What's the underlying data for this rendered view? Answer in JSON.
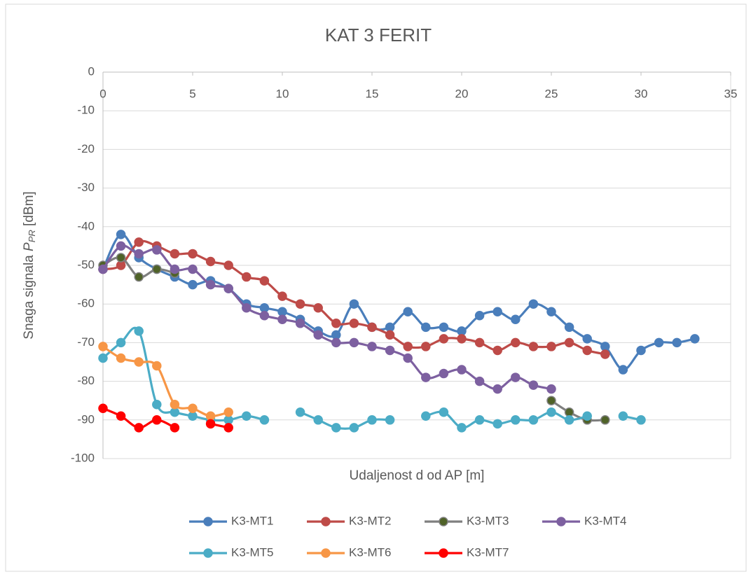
{
  "chart_data": {
    "type": "line",
    "title": "KAT 3 FERIT",
    "x_label": "Udaljenost d od AP [m]",
    "y_label": {
      "text": "Snaga signala ",
      "var": "P",
      "subscript": "PR",
      "suffix": " [dBm]"
    },
    "x": [
      0,
      1,
      2,
      3,
      4,
      5,
      6,
      7,
      8,
      9,
      10,
      11,
      12,
      13,
      14,
      15,
      16,
      17,
      18,
      19,
      20,
      21,
      22,
      23,
      24,
      25,
      26,
      27,
      28,
      29,
      30,
      31,
      32,
      33
    ],
    "xlim": [
      0,
      35
    ],
    "xticks": [
      0,
      5,
      10,
      15,
      20,
      25,
      30,
      35
    ],
    "ylim": [
      -100,
      0
    ],
    "yticks": [
      0,
      -10,
      -20,
      -30,
      -40,
      -50,
      -60,
      -70,
      -80,
      -90,
      -100
    ],
    "grid": true,
    "smooth": true,
    "legend": "bottom",
    "series": [
      {
        "name": "K3-MT1",
        "color": "#4a7ebb",
        "values": [
          -51,
          -42,
          -48,
          -51,
          -53,
          -55,
          -54,
          -56,
          -60,
          -61,
          -62,
          -64,
          -67,
          -68,
          -60,
          -66,
          -66,
          -62,
          -66,
          -66,
          -67,
          -63,
          -62,
          -64,
          -60,
          -62,
          -66,
          -69,
          -71,
          -77,
          -72,
          -70,
          -70,
          -69
        ]
      },
      {
        "name": "K3-MT2",
        "color": "#be4b48",
        "values": [
          -51,
          -50,
          -44,
          -45,
          -47,
          -47,
          -49,
          -50,
          -53,
          -54,
          -58,
          -60,
          -61,
          -65,
          -65,
          -66,
          -68,
          -71,
          -71,
          -69,
          -69,
          -70,
          -72,
          -70,
          -71,
          -71,
          -70,
          -72,
          -73,
          null,
          null,
          null,
          null,
          null
        ]
      },
      {
        "name": "K3-MT3",
        "color": "#7f7f7f",
        "marker_color": "#4f6228",
        "values": [
          -50,
          -48,
          -53,
          -51,
          -52,
          null,
          null,
          null,
          null,
          null,
          null,
          null,
          null,
          null,
          null,
          null,
          null,
          null,
          null,
          null,
          null,
          null,
          null,
          null,
          null,
          -85,
          -88,
          -90,
          -90,
          null,
          null,
          null,
          null,
          null
        ]
      },
      {
        "name": "K3-MT4",
        "color": "#7d60a0",
        "values": [
          -51,
          -45,
          -47,
          -46,
          -51,
          -51,
          -55,
          -56,
          -61,
          -63,
          -64,
          -65,
          -68,
          -70,
          -70,
          -71,
          -72,
          -74,
          -79,
          -78,
          -77,
          -80,
          -82,
          -79,
          -81,
          -82,
          null,
          null,
          null,
          null,
          null,
          null,
          null,
          null
        ]
      },
      {
        "name": "K3-MT5",
        "color": "#4bacc6",
        "values": [
          -74,
          -70,
          -67,
          -86,
          -88,
          -89,
          -90,
          -90,
          -89,
          -90,
          null,
          -88,
          -90,
          -92,
          -92,
          -90,
          -90,
          null,
          -89,
          -88,
          -92,
          -90,
          -91,
          -90,
          -90,
          -88,
          -90,
          -89,
          null,
          -89,
          -90,
          null,
          null,
          null
        ]
      },
      {
        "name": "K3-MT6",
        "color": "#f79646",
        "values": [
          -71,
          -74,
          -75,
          -76,
          -86,
          -87,
          -89,
          -88,
          null,
          null,
          null,
          null,
          null,
          null,
          null,
          null,
          null,
          null,
          null,
          null,
          null,
          null,
          null,
          null,
          null,
          null,
          null,
          null,
          null,
          null,
          null,
          null,
          null,
          null
        ]
      },
      {
        "name": "K3-MT7",
        "color": "#ff0000",
        "values": [
          -87,
          -89,
          -92,
          -90,
          -92,
          null,
          -91,
          -92,
          null,
          null,
          null,
          null,
          null,
          null,
          null,
          null,
          null,
          null,
          null,
          null,
          null,
          null,
          null,
          null,
          null,
          null,
          null,
          null,
          null,
          null,
          null,
          null,
          null,
          null
        ]
      }
    ]
  }
}
